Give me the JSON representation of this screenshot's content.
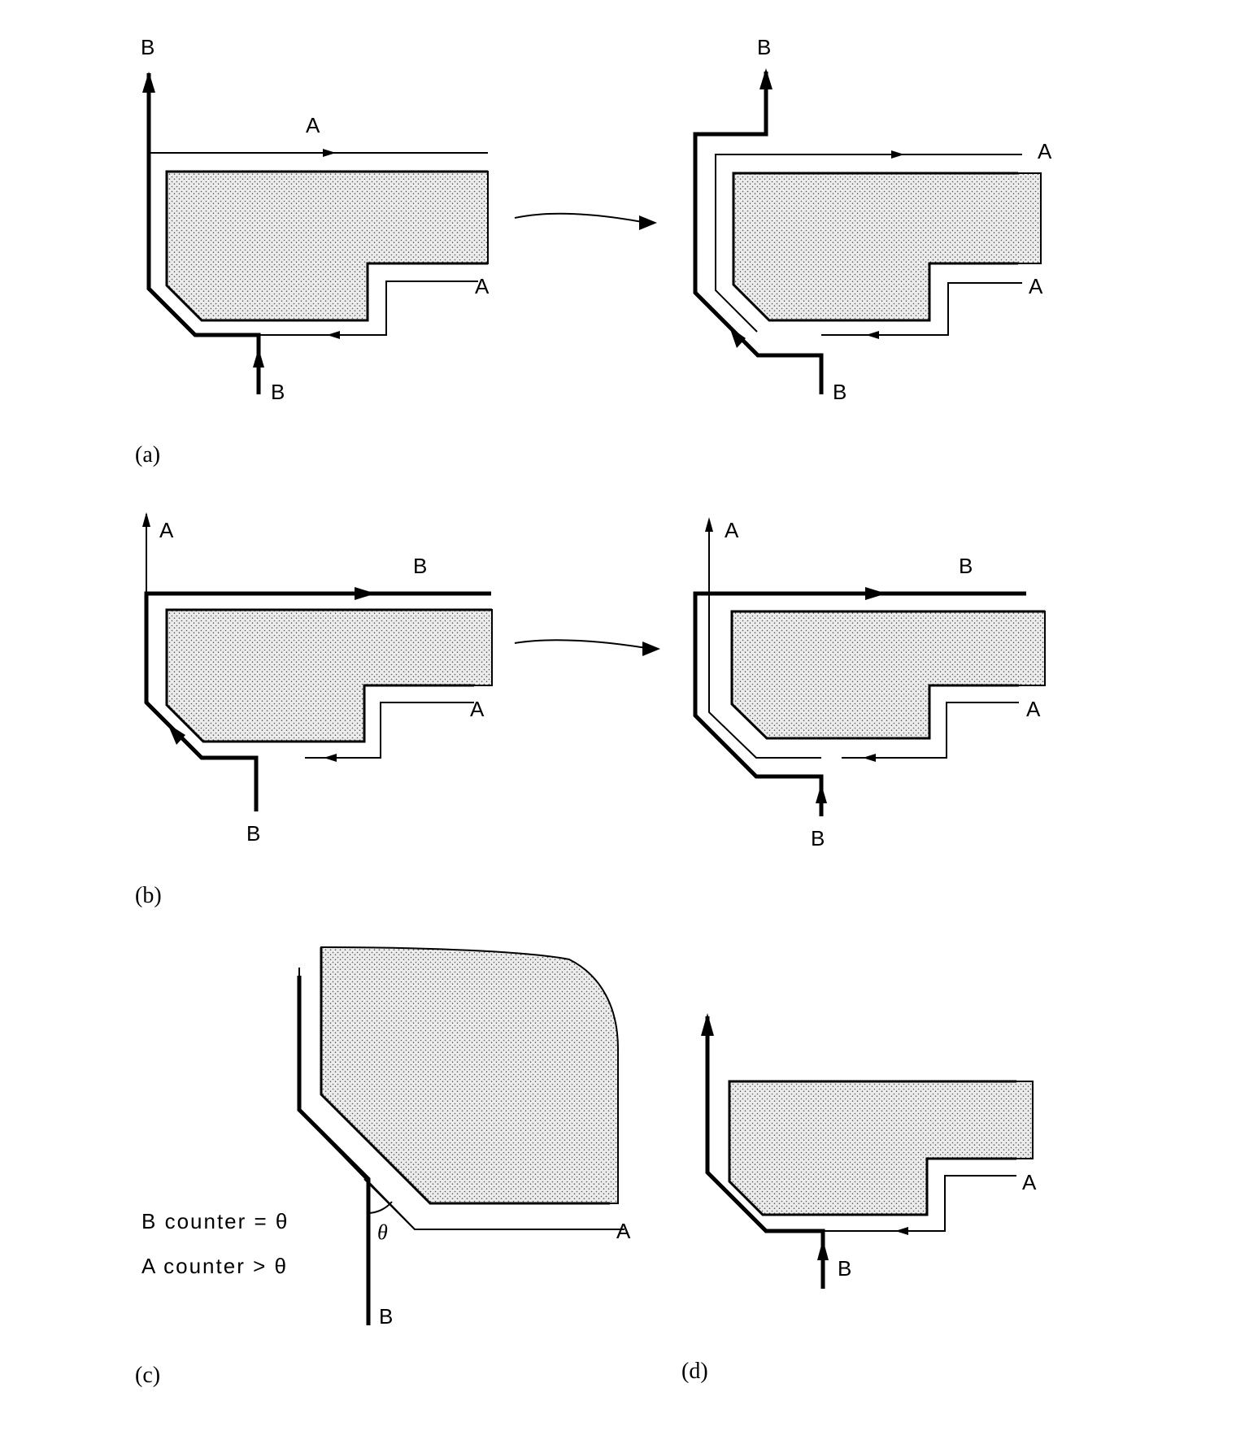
{
  "panels": {
    "a": {
      "caption": "(a)",
      "left": {
        "top_label": "B",
        "upper_label": "A",
        "right_label": "A",
        "bottom_label": "B"
      },
      "right": {
        "top_label": "B",
        "upper_label": "A",
        "right_label": "A",
        "bottom_label": "B"
      }
    },
    "b": {
      "caption": "(b)",
      "left": {
        "top_label": "A",
        "upper_label": "B",
        "right_label": "A",
        "bottom_label": "B"
      },
      "right": {
        "top_label": "A",
        "upper_label": "B",
        "right_label": "A",
        "bottom_label": "B"
      }
    },
    "c": {
      "caption": "(c)",
      "b_counter": "B counter = θ",
      "a_counter": "A counter > θ",
      "angle_label": "θ",
      "right_label": "A",
      "bottom_label": "B"
    },
    "d": {
      "caption": "(d)",
      "right_label": "A",
      "bottom_label": "B"
    }
  },
  "colors": {
    "ink": "#000000",
    "paper": "#ffffff",
    "stipple": "#555555"
  }
}
